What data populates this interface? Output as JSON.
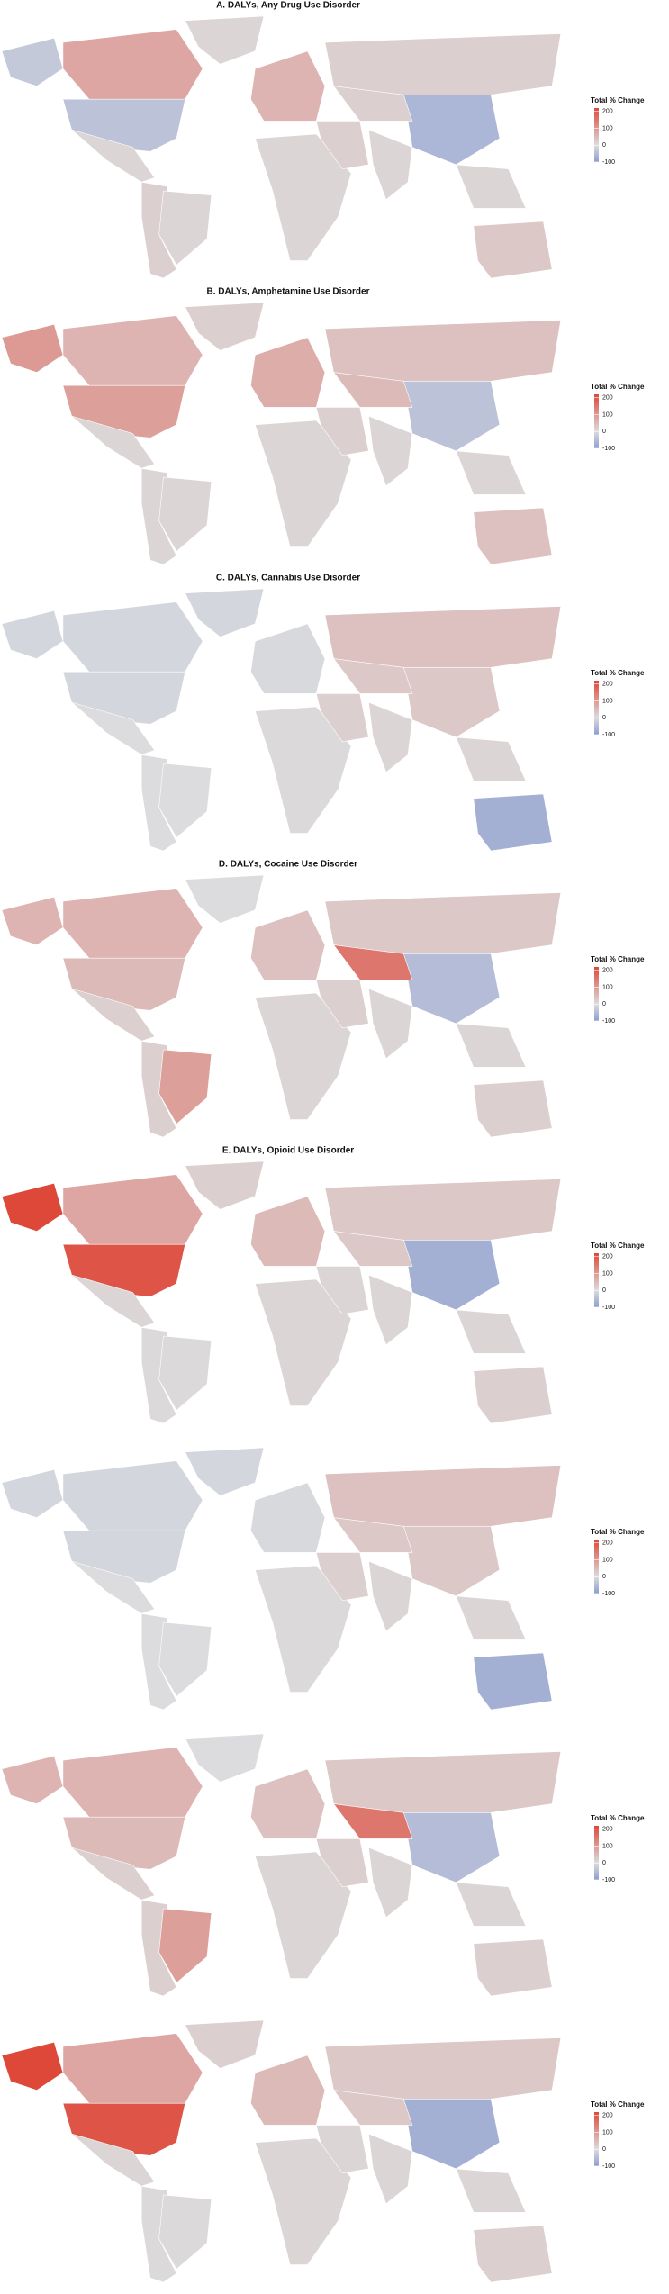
{
  "panels": [
    {
      "title": "A. DALYs, Any Drug Use Disorder",
      "values": [
        -30,
        80,
        -40,
        10,
        20,
        10,
        10,
        60,
        20,
        10,
        20,
        10,
        -60,
        10,
        30,
        20
      ],
      "legend": {
        "title": "Total % Change",
        "lim": [
          -100,
          220
        ],
        "ticks": [
          200,
          100,
          0,
          -100
        ]
      }
    },
    {
      "title": "B. DALYs, Amphetamine Use Disorder",
      "values": [
        100,
        60,
        90,
        10,
        10,
        10,
        20,
        70,
        40,
        10,
        20,
        10,
        -40,
        10,
        40,
        50
      ],
      "legend": {
        "title": "Total % Change",
        "lim": [
          -100,
          220
        ],
        "ticks": [
          200,
          100,
          0,
          -100
        ]
      }
    },
    {
      "title": "C. DALYs, Cannabis Use Disorder",
      "values": [
        -10,
        -10,
        -10,
        0,
        0,
        0,
        -10,
        -5,
        40,
        5,
        20,
        10,
        30,
        10,
        -70,
        30
      ],
      "legend": {
        "title": "Total % Change",
        "lim": [
          -100,
          220
        ],
        "ticks": [
          200,
          100,
          0,
          -100
        ]
      }
    },
    {
      "title": "D. DALYs, Cocaine Use Disorder",
      "values": [
        60,
        60,
        50,
        20,
        20,
        90,
        0,
        40,
        30,
        10,
        20,
        10,
        -50,
        10,
        20,
        150
      ],
      "legend": {
        "title": "Total % Change",
        "lim": [
          -100,
          220
        ],
        "ticks": [
          200,
          100,
          0,
          -100
        ]
      }
    },
    {
      "title": "E. DALYs, Opioid Use Disorder",
      "values": [
        220,
        80,
        200,
        10,
        5,
        5,
        20,
        50,
        30,
        10,
        10,
        10,
        -70,
        10,
        20,
        30
      ],
      "legend": {
        "title": "Total % Change",
        "lim": [
          -100,
          220
        ],
        "ticks": [
          200,
          100,
          0,
          -100
        ]
      }
    },
    {
      "values": [
        -10,
        -10,
        -10,
        0,
        0,
        0,
        -10,
        -5,
        40,
        5,
        20,
        10,
        30,
        10,
        -70,
        30
      ],
      "legend": {
        "title": "Total % Change",
        "lim": [
          -100,
          220
        ],
        "ticks": [
          200,
          100,
          0,
          -100
        ]
      }
    },
    {
      "values": [
        60,
        60,
        50,
        20,
        20,
        90,
        0,
        40,
        30,
        10,
        20,
        10,
        -50,
        10,
        20,
        150
      ],
      "legend": {
        "title": "Total % Change",
        "lim": [
          -100,
          220
        ],
        "ticks": [
          200,
          100,
          0,
          -100
        ]
      }
    },
    {
      "values": [
        220,
        80,
        200,
        10,
        5,
        5,
        20,
        50,
        30,
        10,
        10,
        10,
        -70,
        10,
        20,
        30
      ],
      "legend": {
        "title": "Total % Change",
        "lim": [
          -100,
          220
        ],
        "ticks": [
          200,
          100,
          0,
          -100
        ]
      }
    }
  ]
}
